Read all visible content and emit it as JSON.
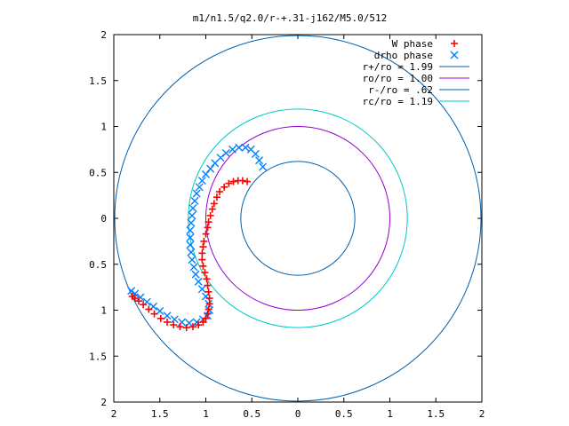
{
  "chart_data": {
    "type": "scatter",
    "title": "m1/n1.5/q2.0/r-+.31-j162/M5.0/512",
    "xlabel": "",
    "ylabel": "",
    "xlim": [
      -2,
      2
    ],
    "ylim": [
      -2,
      2
    ],
    "x_ticks": [
      -2,
      -1.5,
      -1,
      -0.5,
      0,
      0.5,
      1,
      1.5,
      2
    ],
    "y_ticks": [
      -2,
      -1.5,
      -1,
      -0.5,
      0,
      0.5,
      1,
      1.5,
      2
    ],
    "x_tick_labels": [
      "2",
      "1.5",
      "1",
      "0.5",
      "0",
      "0.5",
      "1",
      "1.5",
      "2"
    ],
    "y_tick_labels": [
      "2",
      "1.5",
      "1",
      "0.5",
      "0",
      "0.5",
      "1",
      "1.5",
      "2"
    ],
    "grid": false,
    "legend_position": "top-right",
    "series": [
      {
        "name": "W phase",
        "kind": "points",
        "marker": "plus",
        "color": "#ff0000",
        "points": [
          [
            -0.55,
            0.4
          ],
          [
            -0.6,
            0.41
          ],
          [
            -0.65,
            0.41
          ],
          [
            -0.7,
            0.4
          ],
          [
            -0.75,
            0.38
          ],
          [
            -0.8,
            0.34
          ],
          [
            -0.85,
            0.29
          ],
          [
            -0.88,
            0.23
          ],
          [
            -0.91,
            0.16
          ],
          [
            -0.93,
            0.1
          ],
          [
            -0.95,
            0.03
          ],
          [
            -0.97,
            -0.04
          ],
          [
            -0.98,
            -0.1
          ],
          [
            -1.0,
            -0.17
          ],
          [
            -1.02,
            -0.25
          ],
          [
            -1.03,
            -0.31
          ],
          [
            -1.04,
            -0.38
          ],
          [
            -1.04,
            -0.45
          ],
          [
            -1.03,
            -0.52
          ],
          [
            -1.01,
            -0.59
          ],
          [
            -0.99,
            -0.66
          ],
          [
            -0.98,
            -0.73
          ],
          [
            -0.97,
            -0.8
          ],
          [
            -0.96,
            -0.87
          ],
          [
            -0.96,
            -0.93
          ],
          [
            -0.97,
            -0.99
          ],
          [
            -0.98,
            -1.04
          ],
          [
            -1.0,
            -1.09
          ],
          [
            -1.03,
            -1.13
          ],
          [
            -1.08,
            -1.16
          ],
          [
            -1.14,
            -1.18
          ],
          [
            -1.21,
            -1.19
          ],
          [
            -1.28,
            -1.18
          ],
          [
            -1.35,
            -1.16
          ],
          [
            -1.42,
            -1.13
          ],
          [
            -1.49,
            -1.09
          ],
          [
            -1.56,
            -1.04
          ],
          [
            -1.62,
            -0.99
          ],
          [
            -1.68,
            -0.94
          ],
          [
            -1.73,
            -0.9
          ],
          [
            -1.77,
            -0.87
          ],
          [
            -1.8,
            -0.85
          ]
        ]
      },
      {
        "name": "drho phase",
        "kind": "points",
        "marker": "cross",
        "color": "#0080ff",
        "points": [
          [
            -0.38,
            0.56
          ],
          [
            -0.42,
            0.63
          ],
          [
            -0.46,
            0.7
          ],
          [
            -0.51,
            0.75
          ],
          [
            -0.57,
            0.77
          ],
          [
            -0.64,
            0.77
          ],
          [
            -0.71,
            0.75
          ],
          [
            -0.78,
            0.71
          ],
          [
            -0.84,
            0.66
          ],
          [
            -0.9,
            0.6
          ],
          [
            -0.95,
            0.54
          ],
          [
            -1.0,
            0.48
          ],
          [
            -1.04,
            0.41
          ],
          [
            -1.07,
            0.34
          ],
          [
            -1.1,
            0.27
          ],
          [
            -1.12,
            0.19
          ],
          [
            -1.14,
            0.11
          ],
          [
            -1.15,
            0.03
          ],
          [
            -1.16,
            -0.05
          ],
          [
            -1.17,
            -0.13
          ],
          [
            -1.17,
            -0.21
          ],
          [
            -1.17,
            -0.29
          ],
          [
            -1.16,
            -0.37
          ],
          [
            -1.15,
            -0.45
          ],
          [
            -1.13,
            -0.53
          ],
          [
            -1.11,
            -0.61
          ],
          [
            -1.08,
            -0.69
          ],
          [
            -1.04,
            -0.77
          ],
          [
            -1.0,
            -0.85
          ],
          [
            -0.97,
            -0.93
          ],
          [
            -0.96,
            -1.0
          ],
          [
            -0.98,
            -1.06
          ],
          [
            -1.03,
            -1.1
          ],
          [
            -1.1,
            -1.13
          ],
          [
            -1.18,
            -1.14
          ],
          [
            -1.26,
            -1.13
          ],
          [
            -1.34,
            -1.1
          ],
          [
            -1.42,
            -1.06
          ],
          [
            -1.5,
            -1.01
          ],
          [
            -1.57,
            -0.96
          ],
          [
            -1.64,
            -0.91
          ],
          [
            -1.71,
            -0.86
          ],
          [
            -1.77,
            -0.82
          ],
          [
            -1.81,
            -0.79
          ]
        ]
      },
      {
        "name": "r+/ro = 1.99",
        "kind": "circle",
        "radius": 1.99,
        "color": "#0060ad"
      },
      {
        "name": "ro/ro = 1.00",
        "kind": "circle",
        "radius": 1.0,
        "color": "#9400d3"
      },
      {
        "name": "r-/ro = .62",
        "kind": "circle",
        "radius": 0.62,
        "color": "#0060ad"
      },
      {
        "name": "rc/ro = 1.19",
        "kind": "circle",
        "radius": 1.19,
        "color": "#00c8c8"
      }
    ]
  }
}
